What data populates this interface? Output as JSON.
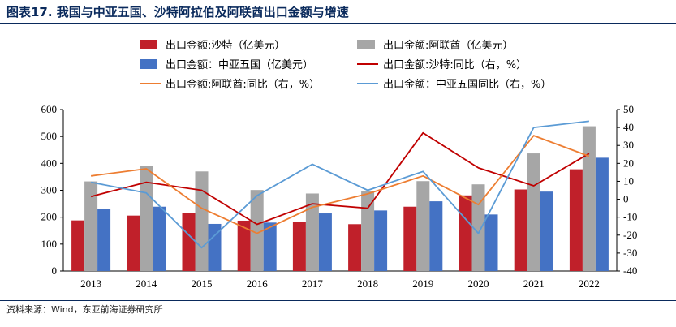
{
  "figure": {
    "title": "图表17. 我国与中亚五国、沙特阿拉伯及阿联酋出口金额与增速",
    "source": "资料来源：Wind，东亚前海证券研究所"
  },
  "chart_data": {
    "type": "bar+line",
    "categories": [
      "2013",
      "2014",
      "2015",
      "2016",
      "2017",
      "2018",
      "2019",
      "2020",
      "2021",
      "2022"
    ],
    "bar_series": [
      {
        "name": "出口金额:沙特（亿美元）",
        "color": "#c0202a",
        "values": [
          188,
          206,
          216,
          187,
          183,
          174,
          239,
          281,
          303,
          378
        ]
      },
      {
        "name": "出口金额:阿联酋（亿美元）",
        "color": "#a6a6a6",
        "values": [
          333,
          390,
          370,
          301,
          288,
          296,
          334,
          322,
          437,
          538
        ]
      },
      {
        "name": "出口金额：中亚五国（亿美元）",
        "color": "#4472c4",
        "values": [
          230,
          239,
          175,
          180,
          214,
          225,
          259,
          210,
          295,
          421
        ]
      }
    ],
    "line_series": [
      {
        "name": "出口金额:沙特:同比（右，%）",
        "color": "#c00000",
        "values": [
          1.5,
          9.5,
          5,
          -14,
          -2.5,
          -5,
          37,
          17.5,
          7.5,
          25.5
        ]
      },
      {
        "name": "出口金额:阿联酋:同比（右，%）",
        "color": "#ed7d31",
        "values": [
          13,
          17,
          -5,
          -19,
          -4.5,
          3,
          13,
          -3,
          35.5,
          24
        ]
      },
      {
        "name": "出口金额：中亚五国同比（右，%）",
        "color": "#5b9bd5",
        "values": [
          9.5,
          3.5,
          -27,
          2,
          19.5,
          5,
          15.5,
          -19,
          40,
          43.5
        ]
      }
    ],
    "y_left": {
      "min": 0,
      "max": 600,
      "ticks": [
        0,
        100,
        200,
        300,
        400,
        500,
        600
      ]
    },
    "y_right": {
      "min": -40,
      "max": 50,
      "ticks": [
        -40,
        -30,
        -20,
        -10,
        0,
        10,
        20,
        30,
        40,
        50
      ]
    },
    "legend": [
      {
        "label": "出口金额:沙特（亿美元）",
        "kind": "bar",
        "color": "#c0202a"
      },
      {
        "label": "出口金额:阿联酋（亿美元）",
        "kind": "bar",
        "color": "#a6a6a6"
      },
      {
        "label": "出口金额：中亚五国（亿美元）",
        "kind": "bar",
        "color": "#4472c4"
      },
      {
        "label": "出口金额:沙特:同比（右，%）",
        "kind": "line",
        "color": "#c00000"
      },
      {
        "label": "出口金额:阿联酋:同比（右，%）",
        "kind": "line",
        "color": "#ed7d31"
      },
      {
        "label": "出口金额：中亚五国同比（右，%）",
        "kind": "line",
        "color": "#5b9bd5"
      }
    ],
    "grid": false,
    "legend_position": "top"
  }
}
